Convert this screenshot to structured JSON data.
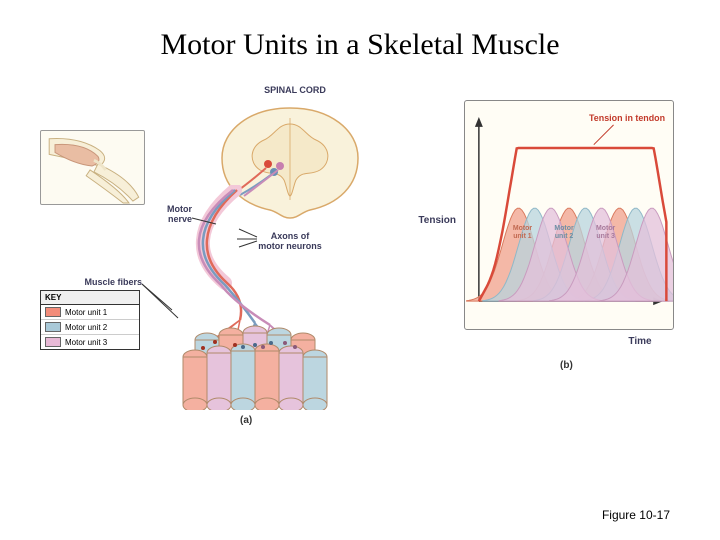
{
  "title": "Motor Units in a Skeletal Muscle",
  "footer": "Figure 10-17",
  "spinal_cord_label": "SPINAL CORD",
  "motor_nerve_label": "Motor\nnerve",
  "axons_label": "Axons of\nmotor neurons",
  "muscle_fibers_label": "Muscle fibers",
  "panel_a_caption": "(a)",
  "panel_b_caption": "(b)",
  "key": {
    "header": "KEY",
    "items": [
      {
        "swatch": "#f28c7a",
        "label": "Motor unit 1"
      },
      {
        "swatch": "#a9c9d8",
        "label": "Motor unit 2"
      },
      {
        "swatch": "#e8b9d6",
        "label": "Motor unit 3"
      }
    ]
  },
  "chart": {
    "type": "area",
    "tension_label": "Tension in tendon",
    "ylabel": "Tension",
    "xlabel": "Time",
    "series": [
      {
        "name": "Motor unit 1",
        "color": "#f0a08c",
        "stroke": "#d97a5e",
        "peaks": [
          22,
          50,
          78
        ],
        "amp": 40,
        "width": 16
      },
      {
        "name": "Motor unit 2",
        "color": "#b8d4de",
        "stroke": "#8fb8c8",
        "peaks": [
          31,
          59,
          87
        ],
        "amp": 40,
        "width": 16
      },
      {
        "name": "Motor unit 3",
        "color": "#e3c0db",
        "stroke": "#c99bbf",
        "peaks": [
          40,
          68,
          96
        ],
        "amp": 40,
        "width": 16
      }
    ],
    "envelope": {
      "stroke": "#d94a3a",
      "stroke_width": 2.5
    },
    "frame_color": "#888888",
    "background_color": "#fffdf5",
    "label_fontsize": 8,
    "axis_label_fontsize": 10,
    "series_label_fontsize": 7
  },
  "spinal_cord": {
    "outline_color": "#d9a96a",
    "fill_color": "#f9f2db",
    "gray_matter_color": "#f5e9c9",
    "neuron_colors": [
      "#d94a3a",
      "#6a8fb5",
      "#c77faf"
    ]
  },
  "fibers": {
    "cylinder_stroke": "#b08a6a",
    "colors": [
      "#f4b0a0",
      "#bcd6e0",
      "#e6c3dc",
      "#bcd6e0",
      "#f4b0a0",
      "#e6c3dc",
      "#f4b0a0",
      "#bcd6e0",
      "#e6c3dc",
      "#f4b0a0",
      "#bcd6e0"
    ]
  },
  "elbow": {
    "bone_color": "#f7efd8",
    "bone_stroke": "#c8b080",
    "muscle_color": "#e9bda3",
    "muscle_stroke": "#c8967a",
    "tendon_color": "#eee4c8"
  },
  "nerve": {
    "sheath_color": "#f3c8d8",
    "axon_colors": [
      "#e06a5a",
      "#7a9cc0",
      "#c88cb8"
    ]
  }
}
